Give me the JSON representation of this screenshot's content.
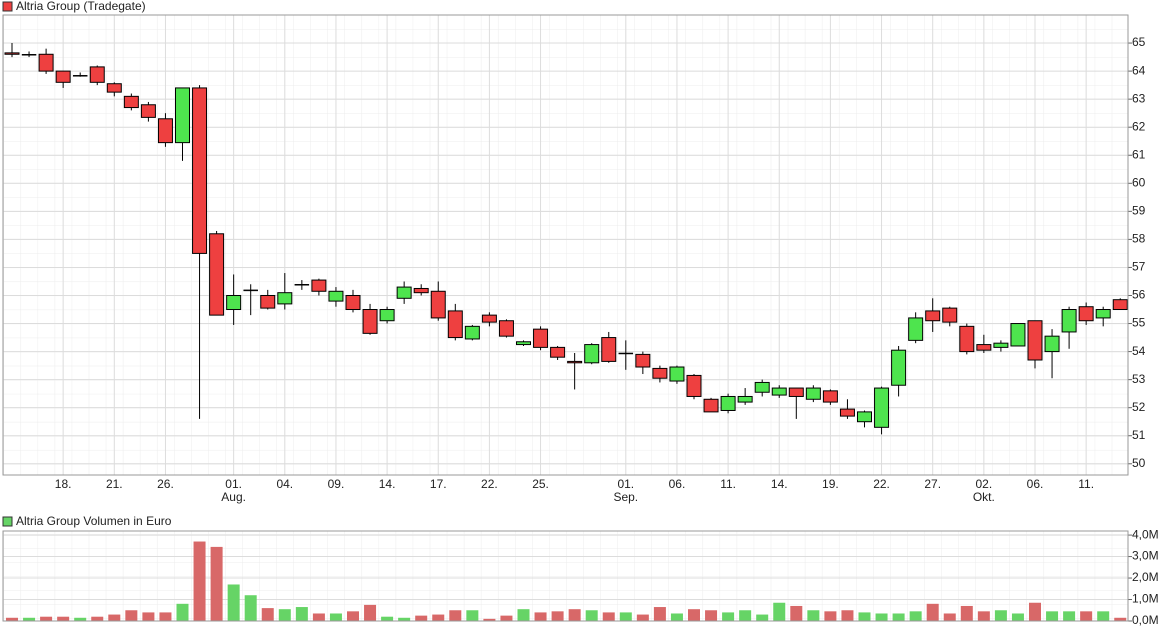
{
  "chart_data": [
    {
      "type": "candlestick",
      "legend": "Altria Group (Tradegate)",
      "up_color": "#4ee44e",
      "down_color": "#ee4040",
      "categories": [
        null,
        null,
        null,
        "18.",
        null,
        null,
        "21.",
        null,
        null,
        "26.",
        null,
        null,
        null,
        "01.",
        null,
        null,
        "04.",
        null,
        null,
        "09.",
        null,
        null,
        "14.",
        null,
        null,
        "17.",
        null,
        null,
        "22.",
        null,
        null,
        "25.",
        null,
        null,
        null,
        null,
        "01.",
        null,
        null,
        "06.",
        null,
        null,
        "11.",
        null,
        null,
        "14.",
        null,
        null,
        "19.",
        null,
        null,
        "22.",
        null,
        null,
        "27.",
        null,
        null,
        "02.",
        null,
        null,
        "06.",
        null,
        null,
        "11.",
        null,
        null
      ],
      "month_labels": [
        null,
        null,
        null,
        null,
        null,
        null,
        null,
        null,
        null,
        null,
        null,
        null,
        null,
        "Aug.",
        null,
        null,
        null,
        null,
        null,
        null,
        null,
        null,
        null,
        null,
        null,
        null,
        null,
        null,
        null,
        null,
        null,
        null,
        null,
        null,
        null,
        null,
        "Sep.",
        null,
        null,
        null,
        null,
        null,
        null,
        null,
        null,
        null,
        null,
        null,
        null,
        null,
        null,
        null,
        null,
        null,
        null,
        null,
        null,
        "Okt.",
        null,
        null,
        null,
        null,
        null,
        null,
        null,
        null
      ],
      "open": [
        64.65,
        64.6,
        64.6,
        64.0,
        63.85,
        64.15,
        63.55,
        63.1,
        62.8,
        62.3,
        61.45,
        63.4,
        58.2,
        55.5,
        56.2,
        56.0,
        55.7,
        56.4,
        56.55,
        55.8,
        56.0,
        55.5,
        55.1,
        55.9,
        56.25,
        56.15,
        55.45,
        54.45,
        55.3,
        55.1,
        54.25,
        54.8,
        54.15,
        53.65,
        53.6,
        54.5,
        53.95,
        53.9,
        53.4,
        52.95,
        53.15,
        52.3,
        51.9,
        52.2,
        52.55,
        52.45,
        52.7,
        52.3,
        52.6,
        51.95,
        51.5,
        51.3,
        52.8,
        54.4,
        55.45,
        55.55,
        54.9,
        54.25,
        54.15,
        54.2,
        55.1,
        54.0,
        54.7,
        55.6,
        55.2,
        55.85
      ],
      "high": [
        65.0,
        64.7,
        64.8,
        64.0,
        63.95,
        64.2,
        63.6,
        63.2,
        62.9,
        62.5,
        63.4,
        63.5,
        58.3,
        56.75,
        56.4,
        56.2,
        56.8,
        56.55,
        56.6,
        56.3,
        56.2,
        55.7,
        55.6,
        56.5,
        56.4,
        56.5,
        55.7,
        54.95,
        55.4,
        55.15,
        54.4,
        54.9,
        54.2,
        53.95,
        54.3,
        54.7,
        54.4,
        54.0,
        53.5,
        53.5,
        53.2,
        52.35,
        52.5,
        52.7,
        53.0,
        52.8,
        52.7,
        52.8,
        52.65,
        52.3,
        51.9,
        52.75,
        54.2,
        55.4,
        55.9,
        55.6,
        55.0,
        54.6,
        54.4,
        55.0,
        55.1,
        54.8,
        55.6,
        55.75,
        55.6,
        55.9
      ],
      "low": [
        64.5,
        64.5,
        63.9,
        63.4,
        63.8,
        63.5,
        63.1,
        62.6,
        62.2,
        61.3,
        60.8,
        51.6,
        55.3,
        54.95,
        55.3,
        55.5,
        55.5,
        56.2,
        56.0,
        55.6,
        55.4,
        54.6,
        55.0,
        55.7,
        56.0,
        55.1,
        54.4,
        54.4,
        54.9,
        54.5,
        54.2,
        54.05,
        53.7,
        52.65,
        53.55,
        53.6,
        53.35,
        53.2,
        52.9,
        52.85,
        52.3,
        51.85,
        51.8,
        52.1,
        52.4,
        52.35,
        51.6,
        52.2,
        52.1,
        51.6,
        51.3,
        51.05,
        52.4,
        54.3,
        54.7,
        54.9,
        53.9,
        53.95,
        54.0,
        54.2,
        53.4,
        53.05,
        54.1,
        54.95,
        54.9,
        55.5
      ],
      "close": [
        64.6,
        64.6,
        64.0,
        63.6,
        63.85,
        63.6,
        63.25,
        62.7,
        62.35,
        61.45,
        63.4,
        57.5,
        55.3,
        56.0,
        56.2,
        55.55,
        56.1,
        56.4,
        56.15,
        56.15,
        55.5,
        54.65,
        55.5,
        56.3,
        56.1,
        55.2,
        54.5,
        54.9,
        55.05,
        54.55,
        54.35,
        54.15,
        53.8,
        53.6,
        54.25,
        53.65,
        53.95,
        53.45,
        53.05,
        53.45,
        52.4,
        51.85,
        52.4,
        52.4,
        52.9,
        52.7,
        52.4,
        52.7,
        52.2,
        51.7,
        51.85,
        52.7,
        54.05,
        55.2,
        55.1,
        55.05,
        54.0,
        54.05,
        54.3,
        55.0,
        53.7,
        54.55,
        55.5,
        55.1,
        55.5,
        55.5
      ],
      "ylim": [
        49.6,
        66.0
      ],
      "yticks": [
        50,
        51,
        52,
        53,
        54,
        55,
        56,
        57,
        58,
        59,
        60,
        61,
        62,
        63,
        64,
        65
      ],
      "grid": true
    },
    {
      "type": "bar",
      "legend": "Altria Group Volumen in Euro",
      "up_color": "#66d466",
      "down_color": "#d86868",
      "values": [
        150000,
        150000,
        200000,
        200000,
        150000,
        200000,
        300000,
        500000,
        400000,
        400000,
        800000,
        3700000,
        3450000,
        1700000,
        1200000,
        600000,
        550000,
        650000,
        350000,
        350000,
        450000,
        750000,
        200000,
        150000,
        250000,
        300000,
        500000,
        500000,
        100000,
        250000,
        550000,
        400000,
        450000,
        550000,
        500000,
        400000,
        400000,
        300000,
        650000,
        350000,
        550000,
        500000,
        400000,
        500000,
        300000,
        850000,
        700000,
        500000,
        450000,
        500000,
        400000,
        350000,
        350000,
        450000,
        800000,
        350000,
        700000,
        450000,
        500000,
        350000,
        850000,
        450000,
        450000,
        450000,
        450000,
        150000
      ],
      "ylim": [
        0,
        4190000
      ],
      "yticks": [
        {
          "value": 0,
          "label": "0,0M"
        },
        {
          "value": 1000000,
          "label": "1,0M"
        },
        {
          "value": 2000000,
          "label": "2,0M"
        },
        {
          "value": 3000000,
          "label": "3,0M"
        },
        {
          "value": 4000000,
          "label": "4,0M"
        }
      ],
      "grid": true
    }
  ]
}
